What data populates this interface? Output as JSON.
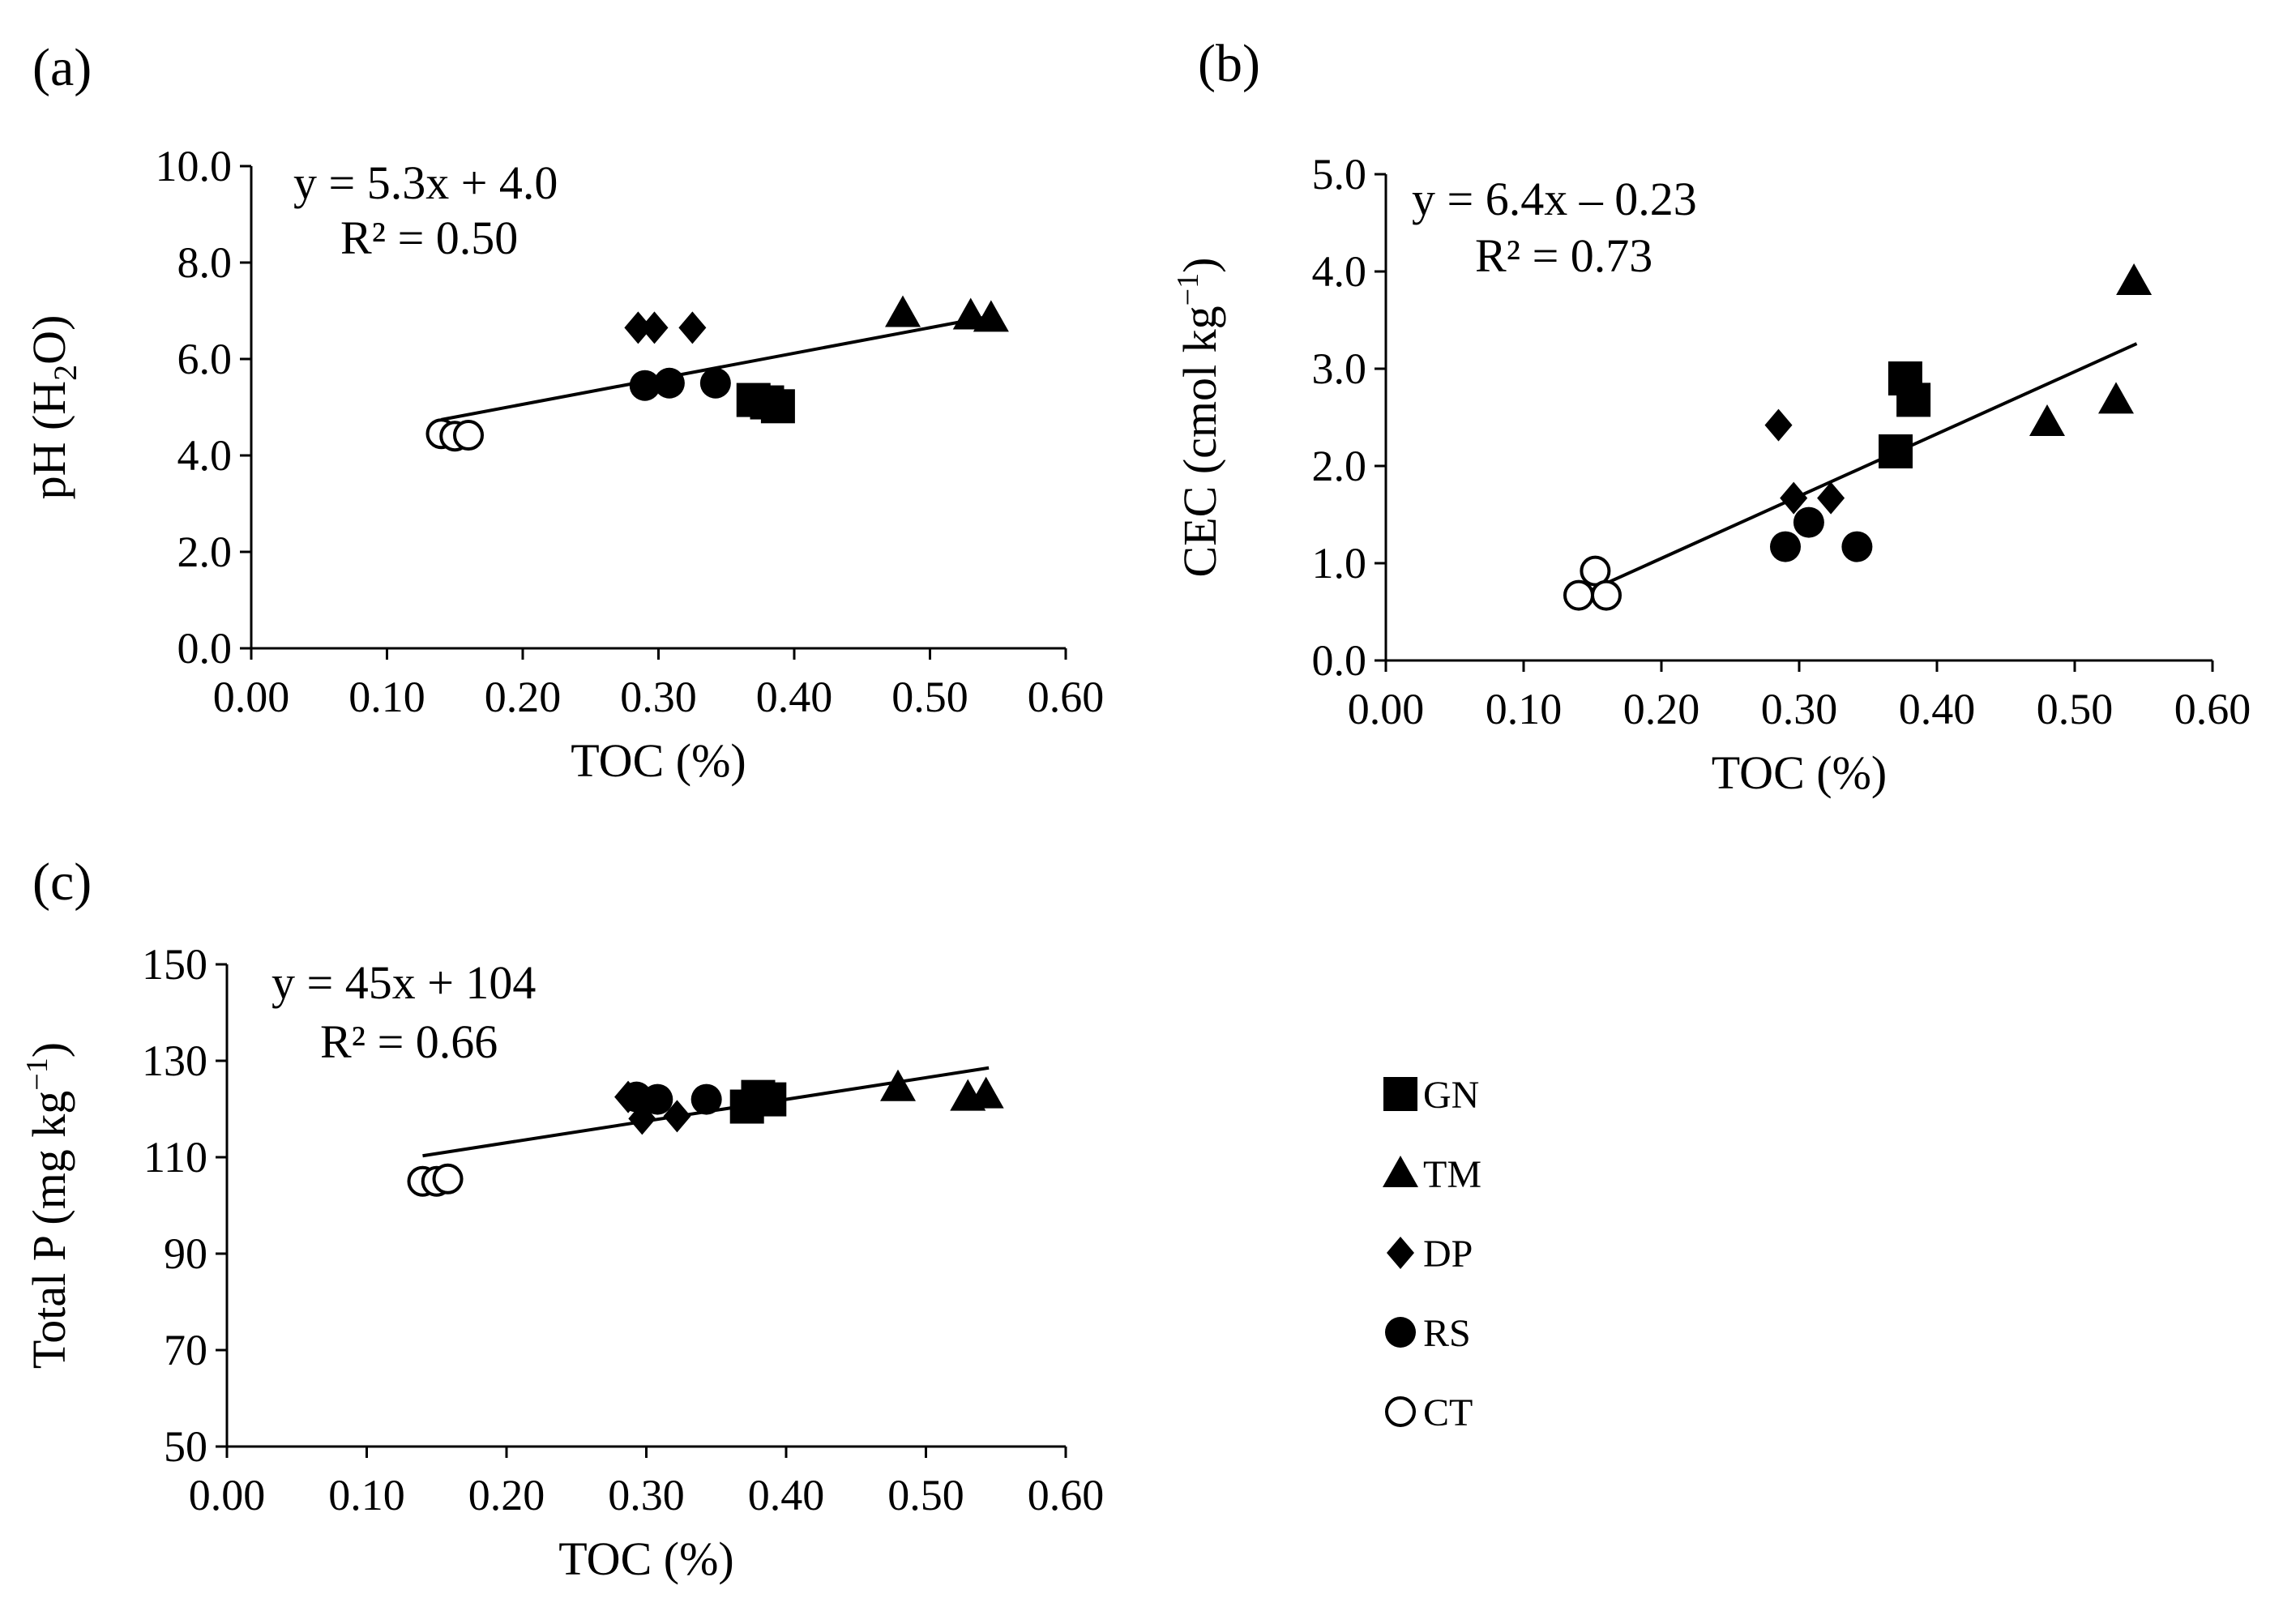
{
  "figure": {
    "legend": [
      {
        "code": "GN",
        "marker": "filled-square"
      },
      {
        "code": "TM",
        "marker": "filled-triangle"
      },
      {
        "code": "DP",
        "marker": "filled-diamond"
      },
      {
        "code": "RS",
        "marker": "filled-circle"
      },
      {
        "code": "CT",
        "marker": "open-circle"
      }
    ]
  },
  "chart_data": [
    {
      "id": "a",
      "panel_label": "(a)",
      "type": "scatter",
      "xlabel": "TOC (%)",
      "ylabel": "pH (H2O)",
      "ylabel_parts": {
        "pre": "pH (H",
        "sub": "2",
        "post": "O)"
      },
      "xlim": [
        0.0,
        0.6
      ],
      "ylim": [
        0.0,
        10.0
      ],
      "xticks": [
        0,
        0.1,
        0.2,
        0.3,
        0.4,
        0.5,
        0.6
      ],
      "xtick_labels": [
        "0.00",
        "0.10",
        "0.20",
        "0.30",
        "0.40",
        "0.50",
        "0.60"
      ],
      "yticks": [
        0,
        2,
        4,
        6,
        8,
        10
      ],
      "ytick_labels": [
        "0.0",
        "2.0",
        "4.0",
        "6.0",
        "8.0",
        "10.0"
      ],
      "trendline": {
        "slope": 5.3,
        "intercept": 4.0,
        "x_range": [
          0.14,
          0.545
        ],
        "equation": "y = 5.3x + 4.0",
        "r2": "R² = 0.50"
      },
      "series": [
        {
          "name": "GN",
          "marker": "filled-square",
          "points": [
            [
              0.37,
              5.15
            ],
            [
              0.38,
              5.1
            ],
            [
              0.388,
              5.02
            ]
          ]
        },
        {
          "name": "TM",
          "marker": "filled-triangle",
          "points": [
            [
              0.48,
              6.95
            ],
            [
              0.53,
              6.9
            ],
            [
              0.545,
              6.85
            ]
          ]
        },
        {
          "name": "DP",
          "marker": "filled-diamond",
          "points": [
            [
              0.285,
              6.65
            ],
            [
              0.297,
              6.65
            ],
            [
              0.325,
              6.65
            ]
          ]
        },
        {
          "name": "RS",
          "marker": "filled-circle",
          "points": [
            [
              0.29,
              5.45
            ],
            [
              0.308,
              5.5
            ],
            [
              0.342,
              5.5
            ]
          ]
        },
        {
          "name": "CT",
          "marker": "open-circle",
          "points": [
            [
              0.14,
              4.45
            ],
            [
              0.15,
              4.4
            ],
            [
              0.16,
              4.42
            ]
          ]
        }
      ]
    },
    {
      "id": "b",
      "panel_label": "(b)",
      "type": "scatter",
      "xlabel": "TOC (%)",
      "ylabel": "CEC (cmol kg−1)",
      "ylabel_parts": {
        "pre": "CEC (cmol kg",
        "sup": "−1",
        "post": ")"
      },
      "xlim": [
        0.0,
        0.6
      ],
      "ylim": [
        0.0,
        5.0
      ],
      "xticks": [
        0,
        0.1,
        0.2,
        0.3,
        0.4,
        0.5,
        0.6
      ],
      "xtick_labels": [
        "0.00",
        "0.10",
        "0.20",
        "0.30",
        "0.40",
        "0.50",
        "0.60"
      ],
      "yticks": [
        0,
        1,
        2,
        3,
        4,
        5
      ],
      "ytick_labels": [
        "0.0",
        "1.0",
        "2.0",
        "3.0",
        "4.0",
        "5.0"
      ],
      "trendline": {
        "slope": 6.4,
        "intercept": -0.23,
        "x_range": [
          0.14,
          0.545
        ],
        "equation": "y = 6.4x – 0.23",
        "r2": "R² = 0.73"
      },
      "series": [
        {
          "name": "GN",
          "marker": "filled-square",
          "points": [
            [
              0.37,
              2.15
            ],
            [
              0.377,
              2.9
            ],
            [
              0.383,
              2.68
            ]
          ]
        },
        {
          "name": "TM",
          "marker": "filled-triangle",
          "points": [
            [
              0.48,
              2.45
            ],
            [
              0.53,
              2.68
            ],
            [
              0.543,
              3.9
            ]
          ]
        },
        {
          "name": "DP",
          "marker": "filled-diamond",
          "points": [
            [
              0.285,
              2.42
            ],
            [
              0.296,
              1.67
            ],
            [
              0.323,
              1.67
            ]
          ]
        },
        {
          "name": "RS",
          "marker": "filled-circle",
          "points": [
            [
              0.29,
              1.17
            ],
            [
              0.307,
              1.42
            ],
            [
              0.342,
              1.17
            ]
          ]
        },
        {
          "name": "CT",
          "marker": "open-circle",
          "points": [
            [
              0.14,
              0.67
            ],
            [
              0.152,
              0.92
            ],
            [
              0.16,
              0.67
            ]
          ]
        }
      ]
    },
    {
      "id": "c",
      "panel_label": "(c)",
      "type": "scatter",
      "xlabel": "TOC (%)",
      "ylabel": "Total P (mg kg−1)",
      "ylabel_parts": {
        "pre": "Total P (mg kg",
        "sup": "−1",
        "post": ")"
      },
      "xlim": [
        0.0,
        0.6
      ],
      "ylim": [
        50,
        150
      ],
      "xticks": [
        0,
        0.1,
        0.2,
        0.3,
        0.4,
        0.5,
        0.6
      ],
      "xtick_labels": [
        "0.00",
        "0.10",
        "0.20",
        "0.30",
        "0.40",
        "0.50",
        "0.60"
      ],
      "yticks": [
        50,
        70,
        90,
        110,
        130,
        150
      ],
      "ytick_labels": [
        "50",
        "70",
        "90",
        "110",
        "130",
        "150"
      ],
      "trendline": {
        "slope": 45,
        "intercept": 104,
        "x_range": [
          0.14,
          0.545
        ],
        "equation": "y = 45x + 104",
        "r2": "R² = 0.66"
      },
      "series": [
        {
          "name": "GN",
          "marker": "filled-square",
          "points": [
            [
              0.372,
              120.5
            ],
            [
              0.38,
              122.5
            ],
            [
              0.388,
              122.0
            ]
          ]
        },
        {
          "name": "TM",
          "marker": "filled-triangle",
          "points": [
            [
              0.48,
              124.5
            ],
            [
              0.53,
              122.5
            ],
            [
              0.543,
              123.0
            ]
          ]
        },
        {
          "name": "DP",
          "marker": "filled-diamond",
          "points": [
            [
              0.287,
              122.5
            ],
            [
              0.297,
              118.0
            ],
            [
              0.322,
              118.5
            ]
          ]
        },
        {
          "name": "RS",
          "marker": "filled-circle",
          "points": [
            [
              0.293,
              122.5
            ],
            [
              0.308,
              122.0
            ],
            [
              0.343,
              122.0
            ]
          ]
        },
        {
          "name": "CT",
          "marker": "open-circle",
          "points": [
            [
              0.14,
              105.0
            ],
            [
              0.15,
              105.0
            ],
            [
              0.158,
              105.5
            ]
          ]
        }
      ]
    }
  ]
}
